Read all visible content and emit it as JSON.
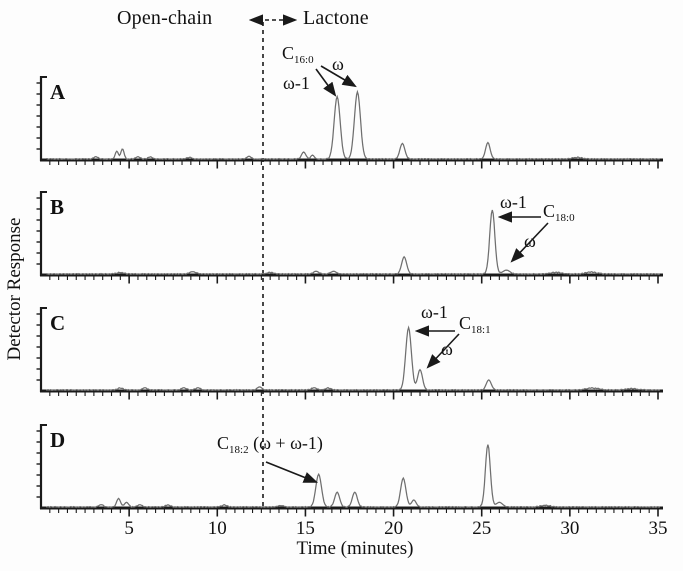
{
  "figure": {
    "header": {
      "left_label": "Open-chain",
      "right_label": "Lactone"
    },
    "ylabel": "Detector Response",
    "xlabel": "Time (minutes)"
  },
  "chart_data": {
    "type": "line",
    "title": "",
    "xlabel": "Time (minutes)",
    "ylabel": "Detector Response",
    "x_range": [
      0,
      35
    ],
    "x_ticks": [
      5,
      10,
      15,
      20,
      25,
      30,
      35
    ],
    "divider_time": 12.5,
    "regions": {
      "left": "Open-chain",
      "right": "Lactone"
    },
    "colors": {
      "trace": "#6f6f6f",
      "axis": "#1a1a1a",
      "text": "#111111"
    },
    "panels": [
      {
        "label": "A",
        "analyte": "C16:0",
        "annotations": {
          "symbol": "C",
          "subscript": "16:0",
          "omega": "ω",
          "omega_minus_1": "ω-1"
        },
        "peaks": [
          {
            "t": 3.1,
            "h": 0.03,
            "w": 0.12
          },
          {
            "t": 4.3,
            "h": 0.1,
            "w": 0.09
          },
          {
            "t": 4.62,
            "h": 0.13,
            "w": 0.09
          },
          {
            "t": 5.5,
            "h": 0.03,
            "w": 0.12
          },
          {
            "t": 6.2,
            "h": 0.025,
            "w": 0.12
          },
          {
            "t": 8.4,
            "h": 0.02,
            "w": 0.15
          },
          {
            "t": 11.8,
            "h": 0.035,
            "w": 0.12
          },
          {
            "t": 14.9,
            "h": 0.09,
            "w": 0.12
          },
          {
            "t": 15.4,
            "h": 0.05,
            "w": 0.1
          },
          {
            "t": 16.8,
            "h": 0.8,
            "w": 0.17
          },
          {
            "t": 17.95,
            "h": 0.86,
            "w": 0.17
          },
          {
            "t": 20.5,
            "h": 0.2,
            "w": 0.14
          },
          {
            "t": 25.35,
            "h": 0.21,
            "w": 0.13
          },
          {
            "t": 30.4,
            "h": 0.02,
            "w": 0.25
          }
        ]
      },
      {
        "label": "B",
        "analyte": "C18:0",
        "annotations": {
          "symbol": "C",
          "subscript": "18:0",
          "omega": "ω",
          "omega_minus_1": "ω-1"
        },
        "peaks": [
          {
            "t": 4.5,
            "h": 0.02,
            "w": 0.2
          },
          {
            "t": 8.6,
            "h": 0.03,
            "w": 0.18
          },
          {
            "t": 13.0,
            "h": 0.02,
            "w": 0.18
          },
          {
            "t": 15.6,
            "h": 0.035,
            "w": 0.15
          },
          {
            "t": 16.6,
            "h": 0.035,
            "w": 0.15
          },
          {
            "t": 20.6,
            "h": 0.22,
            "w": 0.14
          },
          {
            "t": 25.6,
            "h": 0.82,
            "w": 0.145
          },
          {
            "t": 26.4,
            "h": 0.05,
            "w": 0.2
          },
          {
            "t": 29.2,
            "h": 0.02,
            "w": 0.3
          },
          {
            "t": 31.2,
            "h": 0.025,
            "w": 0.3
          }
        ]
      },
      {
        "label": "C",
        "analyte": "C18:1",
        "annotations": {
          "symbol": "C",
          "subscript": "18:1",
          "omega": "ω",
          "omega_minus_1": "ω-1"
        },
        "peaks": [
          {
            "t": 4.5,
            "h": 0.025,
            "w": 0.15
          },
          {
            "t": 5.9,
            "h": 0.03,
            "w": 0.13
          },
          {
            "t": 8.1,
            "h": 0.03,
            "w": 0.13
          },
          {
            "t": 8.9,
            "h": 0.03,
            "w": 0.13
          },
          {
            "t": 12.4,
            "h": 0.04,
            "w": 0.13
          },
          {
            "t": 15.5,
            "h": 0.03,
            "w": 0.15
          },
          {
            "t": 16.3,
            "h": 0.025,
            "w": 0.15
          },
          {
            "t": 20.85,
            "h": 0.8,
            "w": 0.16
          },
          {
            "t": 21.5,
            "h": 0.26,
            "w": 0.14
          },
          {
            "t": 25.4,
            "h": 0.13,
            "w": 0.14
          },
          {
            "t": 31.3,
            "h": 0.025,
            "w": 0.35
          },
          {
            "t": 33.5,
            "h": 0.02,
            "w": 0.3
          }
        ]
      },
      {
        "label": "D",
        "analyte": "C18:2",
        "annotations": {
          "symbol": "C",
          "subscript": "18:2",
          "suffix": "(ω + ω-1)"
        },
        "peaks": [
          {
            "t": 3.4,
            "h": 0.03,
            "w": 0.13
          },
          {
            "t": 4.4,
            "h": 0.11,
            "w": 0.11
          },
          {
            "t": 4.85,
            "h": 0.06,
            "w": 0.11
          },
          {
            "t": 5.6,
            "h": 0.03,
            "w": 0.13
          },
          {
            "t": 7.2,
            "h": 0.025,
            "w": 0.15
          },
          {
            "t": 10.4,
            "h": 0.025,
            "w": 0.15
          },
          {
            "t": 13.6,
            "h": 0.02,
            "w": 0.15
          },
          {
            "t": 15.75,
            "h": 0.42,
            "w": 0.16
          },
          {
            "t": 16.8,
            "h": 0.19,
            "w": 0.14
          },
          {
            "t": 17.8,
            "h": 0.19,
            "w": 0.14
          },
          {
            "t": 20.55,
            "h": 0.37,
            "w": 0.15
          },
          {
            "t": 21.15,
            "h": 0.09,
            "w": 0.13
          },
          {
            "t": 25.35,
            "h": 0.8,
            "w": 0.14
          },
          {
            "t": 26.0,
            "h": 0.06,
            "w": 0.18
          },
          {
            "t": 28.6,
            "h": 0.02,
            "w": 0.3
          }
        ]
      }
    ]
  }
}
